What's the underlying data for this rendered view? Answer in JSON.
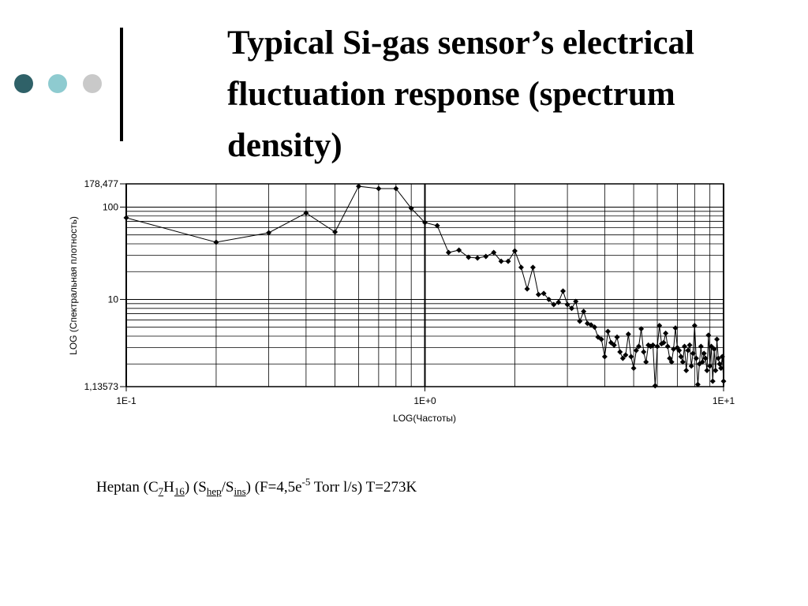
{
  "slide": {
    "title": "Typical Si-gas sensor’s electrical fluctuation response (spectrum density)",
    "caption": [
      "Heptan (C",
      "7",
      "H",
      "16",
      ") (S",
      "hep",
      "/S",
      "ins",
      ") (F=4,5e",
      "-5",
      " Torr l/s) T=273K"
    ]
  },
  "chart_data": {
    "type": "line",
    "x_label": "LOG(Частоты)",
    "y_label": "LOG (Спектральная плотность)",
    "xscale": "log",
    "yscale": "log",
    "grid": true,
    "color": "#000000",
    "xlim": [
      0.1,
      10
    ],
    "ylim": [
      1.13573,
      178.477
    ],
    "xticks": [
      {
        "value": 0.1,
        "label": "1E-1"
      },
      {
        "value": 1,
        "label": "1E+0"
      },
      {
        "value": 10,
        "label": "1E+1"
      }
    ],
    "yticks": [
      {
        "value": 1.13573,
        "label": "1,13573"
      },
      10,
      100,
      {
        "value": 178.477,
        "label": "178,477"
      }
    ],
    "xminorticks": [
      0.2,
      0.3,
      0.4,
      0.5,
      0.6,
      0.7,
      0.8,
      0.9,
      2,
      3,
      4,
      5,
      6,
      7,
      8,
      9
    ],
    "yminorticks": [
      2,
      3,
      4,
      5,
      6,
      7,
      8,
      9,
      20,
      30,
      40,
      50,
      60,
      70,
      80,
      90
    ],
    "x": [
      0.1,
      0.2,
      0.3,
      0.4,
      0.5,
      0.6,
      0.7,
      0.8,
      0.9,
      1.0,
      1.1,
      1.2,
      1.3,
      1.4,
      1.5,
      1.6,
      1.7,
      1.8,
      1.9,
      2.0,
      2.1,
      2.2,
      2.3,
      2.4,
      2.5,
      2.6,
      2.7,
      2.8,
      2.9,
      3.0,
      3.1,
      3.2,
      3.3,
      3.4,
      3.5,
      3.6,
      3.7,
      3.8,
      3.9,
      4.0,
      4.1,
      4.2,
      4.3,
      4.4,
      4.5,
      4.6,
      4.7,
      4.8,
      4.9,
      5.0,
      5.1,
      5.2,
      5.3,
      5.4,
      5.5,
      5.6,
      5.7,
      5.8,
      5.9,
      6.0,
      6.1,
      6.2,
      6.3,
      6.4,
      6.5,
      6.6,
      6.7,
      6.8,
      6.9,
      7.0,
      7.1,
      7.2,
      7.3,
      7.4,
      7.5,
      7.6,
      7.7,
      7.8,
      7.9,
      8.0,
      8.1,
      8.2,
      8.3,
      8.4,
      8.5,
      8.6,
      8.7,
      8.8,
      8.9,
      9.0,
      9.1,
      9.2,
      9.3,
      9.4,
      9.5,
      9.6,
      9.7,
      9.8,
      9.9,
      10.0
    ],
    "values": [
      76.6,
      41.6,
      52.7,
      86.2,
      53.7,
      168,
      158.6,
      158.6,
      97,
      68,
      62.9,
      32.2,
      34.2,
      28.6,
      28.1,
      29.2,
      32.2,
      25.9,
      25.9,
      33.5,
      22.2,
      13,
      22.2,
      11.3,
      11.6,
      10,
      8.8,
      9.3,
      12.3,
      8.8,
      8.0,
      9.5,
      5.8,
      7.4,
      5.5,
      5.3,
      5.0,
      3.9,
      3.7,
      2.4,
      4.5,
      3.4,
      3.2,
      3.9,
      2.7,
      2.3,
      2.5,
      4.2,
      2.4,
      1.8,
      2.8,
      3.1,
      4.8,
      2.7,
      2.1,
      3.2,
      3.1,
      3.2,
      1.16,
      3.1,
      5.2,
      3.3,
      3.4,
      4.3,
      3.1,
      2.3,
      2.1,
      2.9,
      4.9,
      3.0,
      2.8,
      2.4,
      2.1,
      3.1,
      1.7,
      2.8,
      3.2,
      1.9,
      2.6,
      5.2,
      2.3,
      1.2,
      2.0,
      3.1,
      2.1,
      2.6,
      2.3,
      1.7,
      4.1,
      1.9,
      3.1,
      1.3,
      2.9,
      1.7,
      3.7,
      2.3,
      2.0,
      1.8,
      2.4,
      1.3
    ]
  }
}
